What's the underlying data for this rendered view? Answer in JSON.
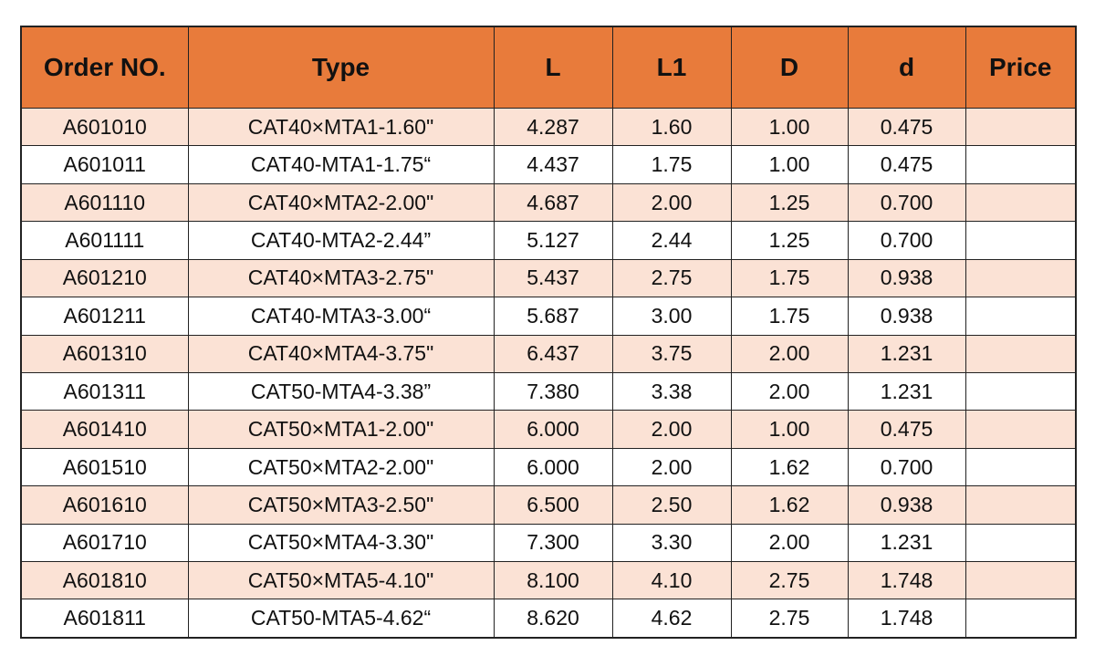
{
  "table": {
    "header": [
      "Order NO.",
      "Type",
      "L",
      "L1",
      "D",
      "d",
      "Price"
    ],
    "rows": [
      [
        "A601010",
        "CAT40×MTA1-1.60\"",
        "4.287",
        "1.60",
        "1.00",
        "0.475"
      ],
      [
        "A601011",
        "CAT40-MTA1-1.75“",
        "4.437",
        "1.75",
        "1.00",
        "0.475"
      ],
      [
        "A601110",
        "CAT40×MTA2-2.00\"",
        "4.687",
        "2.00",
        "1.25",
        "0.700"
      ],
      [
        "A601111",
        "CAT40-MTA2-2.44”",
        "5.127",
        "2.44",
        "1.25",
        "0.700"
      ],
      [
        "A601210",
        "CAT40×MTA3-2.75\"",
        "5.437",
        "2.75",
        "1.75",
        "0.938"
      ],
      [
        "A601211",
        "CAT40-MTA3-3.00“",
        "5.687",
        "3.00",
        "1.75",
        "0.938"
      ],
      [
        "A601310",
        "CAT40×MTA4-3.75\"",
        "6.437",
        "3.75",
        "2.00",
        "1.231"
      ],
      [
        "A601311",
        "CAT50-MTA4-3.38”",
        "7.380",
        "3.38",
        "2.00",
        "1.231"
      ],
      [
        "A601410",
        "CAT50×MTA1-2.00\"",
        "6.000",
        "2.00",
        "1.00",
        "0.475"
      ],
      [
        "A601510",
        "CAT50×MTA2-2.00\"",
        "6.000",
        "2.00",
        "1.62",
        "0.700"
      ],
      [
        "A601610",
        "CAT50×MTA3-2.50\"",
        "6.500",
        "2.50",
        "1.62",
        "0.938"
      ],
      [
        "A601710",
        "CAT50×MTA4-3.30\"",
        "7.300",
        "3.30",
        "2.00",
        "1.231"
      ],
      [
        "A601810",
        "CAT50×MTA5-4.10\"",
        "8.100",
        "4.10",
        "2.75",
        "1.748"
      ],
      [
        "A601811",
        "CAT50-MTA5-4.62“",
        "8.620",
        "4.62",
        "2.75",
        "1.748"
      ]
    ]
  }
}
